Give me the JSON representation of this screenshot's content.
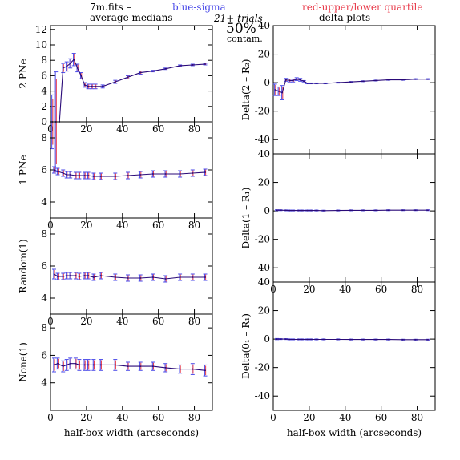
{
  "header": {
    "file_label": "7m.fits  –",
    "blue_label": "blue-sigma",
    "red_label": "red-upper/lower quartile",
    "left_title": "average medians",
    "trials": "21+ trials",
    "percent": "50%",
    "contam": "contam.",
    "right_title": "delta plots"
  },
  "colors": {
    "median": "#2a0a78",
    "sigma": "#4a4ae8",
    "quartile": "#e83a4a",
    "axis": "#000000"
  },
  "chart_data": [
    {
      "type": "line",
      "panel": "left-1",
      "xlabel": "",
      "ylabel": "2 PNe",
      "xlim": [
        0,
        90
      ],
      "ylim": [
        0,
        12.5
      ],
      "xticks": [
        0,
        20,
        40,
        60,
        80
      ],
      "yticks": [
        0,
        2,
        4,
        6,
        8,
        10,
        12
      ],
      "show_xticklabels": true,
      "x": [
        1,
        3,
        5,
        7,
        9,
        11,
        13,
        15,
        17,
        19,
        21,
        23,
        25,
        29,
        36,
        43,
        50,
        57,
        64,
        72,
        79,
        86
      ],
      "y": [
        0,
        0,
        0,
        7.0,
        7.2,
        7.6,
        8.1,
        7.0,
        6.0,
        4.8,
        4.6,
        4.6,
        4.6,
        4.6,
        5.2,
        5.8,
        6.4,
        6.6,
        6.9,
        7.3,
        7.4,
        7.5
      ],
      "err": [
        3.5,
        6.5,
        0,
        0.6,
        0.6,
        0.6,
        0.8,
        0.5,
        0.4,
        0.3,
        0.3,
        0.3,
        0.3,
        0.2,
        0.2,
        0.2,
        0.2,
        0.1,
        0.1,
        0.1,
        0.1,
        0.1
      ]
    },
    {
      "type": "line",
      "panel": "left-2",
      "xlabel": "",
      "ylabel": "1 PNe",
      "xlim": [
        0,
        90
      ],
      "ylim": [
        3,
        9
      ],
      "xticks": [
        0,
        20,
        40,
        60,
        80
      ],
      "yticks": [
        4,
        6,
        8
      ],
      "show_xticklabels": true,
      "x": [
        2,
        4,
        7,
        9,
        11,
        14,
        16,
        19,
        21,
        24,
        28,
        36,
        43,
        50,
        57,
        64,
        72,
        79,
        86
      ],
      "y": [
        6.0,
        5.9,
        5.8,
        5.7,
        5.7,
        5.65,
        5.65,
        5.65,
        5.65,
        5.6,
        5.6,
        5.6,
        5.65,
        5.7,
        5.75,
        5.75,
        5.75,
        5.8,
        5.85
      ],
      "err": [
        0.2,
        0.2,
        0.2,
        0.2,
        0.2,
        0.2,
        0.2,
        0.2,
        0.2,
        0.2,
        0.2,
        0.2,
        0.2,
        0.2,
        0.2,
        0.2,
        0.2,
        0.2,
        0.2
      ]
    },
    {
      "type": "line",
      "panel": "left-3",
      "xlabel": "",
      "ylabel": "Random(1)",
      "xlim": [
        0,
        90
      ],
      "ylim": [
        3,
        9
      ],
      "xticks": [
        0,
        20,
        40,
        60,
        80
      ],
      "yticks": [
        4,
        6,
        8
      ],
      "show_xticklabels": true,
      "x": [
        2,
        4,
        7,
        9,
        11,
        14,
        16,
        19,
        21,
        24,
        28,
        36,
        43,
        50,
        57,
        64,
        72,
        79,
        86
      ],
      "y": [
        5.5,
        5.35,
        5.35,
        5.4,
        5.4,
        5.4,
        5.35,
        5.4,
        5.4,
        5.3,
        5.4,
        5.3,
        5.25,
        5.25,
        5.3,
        5.2,
        5.3,
        5.3,
        5.3
      ],
      "err": [
        0.3,
        0.2,
        0.2,
        0.2,
        0.2,
        0.2,
        0.2,
        0.2,
        0.2,
        0.2,
        0.2,
        0.2,
        0.2,
        0.2,
        0.2,
        0.2,
        0.2,
        0.2,
        0.2
      ]
    },
    {
      "type": "line",
      "panel": "left-4",
      "xlabel": "half-box width (arcseconds)",
      "ylabel": "None(1)",
      "xlim": [
        0,
        90
      ],
      "ylim": [
        2,
        9
      ],
      "xticks": [
        0,
        20,
        40,
        60,
        80
      ],
      "yticks": [
        4,
        6,
        8
      ],
      "show_xticklabels": true,
      "x": [
        2,
        4,
        7,
        9,
        11,
        14,
        16,
        19,
        21,
        24,
        28,
        36,
        43,
        50,
        57,
        64,
        72,
        79,
        86
      ],
      "y": [
        5.3,
        5.4,
        5.2,
        5.3,
        5.4,
        5.4,
        5.3,
        5.3,
        5.3,
        5.3,
        5.3,
        5.3,
        5.2,
        5.2,
        5.2,
        5.1,
        5.0,
        5.0,
        4.9
      ],
      "err": [
        0.5,
        0.4,
        0.4,
        0.4,
        0.4,
        0.4,
        0.4,
        0.4,
        0.4,
        0.4,
        0.4,
        0.4,
        0.3,
        0.3,
        0.3,
        0.3,
        0.3,
        0.4,
        0.4
      ]
    },
    {
      "type": "line",
      "panel": "right-1",
      "xlabel": "",
      "ylabel": "Delta(2 – R₂)",
      "xlim": [
        0,
        90
      ],
      "ylim": [
        -50,
        40
      ],
      "xticks": [
        0,
        20,
        40,
        60,
        80
      ],
      "yticks": [
        -40,
        -20,
        0,
        20,
        40
      ],
      "show_xticklabels": false,
      "x": [
        1,
        3,
        5,
        7,
        9,
        11,
        13,
        15,
        17,
        19,
        21,
        24,
        29,
        36,
        43,
        50,
        57,
        64,
        72,
        79,
        86
      ],
      "y": [
        -5,
        -6,
        -7,
        2,
        1.5,
        1.5,
        2.5,
        2,
        1,
        -0.5,
        -0.5,
        -0.5,
        -0.5,
        0,
        0.5,
        1,
        1.5,
        2,
        2,
        2.5,
        2.5
      ],
      "err": [
        4,
        3,
        5,
        1,
        1,
        1,
        1,
        1,
        0.5,
        0.3,
        0.3,
        0.3,
        0.3,
        0.3,
        0.3,
        0.3,
        0.3,
        0.3,
        0.3,
        0.3,
        0.3
      ]
    },
    {
      "type": "line",
      "panel": "right-2",
      "xlabel": "",
      "ylabel": "Delta(1 – R₁)",
      "xlim": [
        0,
        90
      ],
      "ylim": [
        -50,
        40
      ],
      "xticks": [
        0,
        20,
        40,
        60,
        80
      ],
      "yticks": [
        -40,
        -20,
        0,
        20,
        40
      ],
      "show_xticklabels": true,
      "x": [
        2,
        4,
        7,
        9,
        11,
        14,
        16,
        19,
        21,
        24,
        28,
        36,
        43,
        50,
        57,
        64,
        72,
        79,
        86
      ],
      "y": [
        0.5,
        0.5,
        0.4,
        0.3,
        0.3,
        0.3,
        0.3,
        0.3,
        0.3,
        0.3,
        0.2,
        0.3,
        0.4,
        0.4,
        0.4,
        0.5,
        0.5,
        0.5,
        0.5
      ],
      "err": [
        0.3,
        0.3,
        0.3,
        0.3,
        0.3,
        0.3,
        0.3,
        0.3,
        0.3,
        0.3,
        0.3,
        0.3,
        0.3,
        0.3,
        0.3,
        0.3,
        0.3,
        0.3,
        0.3
      ]
    },
    {
      "type": "line",
      "panel": "right-3",
      "xlabel": "half-box width (arcseconds)",
      "ylabel": "Delta(0₁ – R₁)",
      "xlim": [
        0,
        90
      ],
      "ylim": [
        -50,
        40
      ],
      "xticks": [
        0,
        20,
        40,
        60,
        80
      ],
      "yticks": [
        -40,
        -20,
        0,
        20,
        40
      ],
      "show_xticklabels": true,
      "x": [
        2,
        4,
        7,
        9,
        11,
        14,
        16,
        19,
        21,
        24,
        28,
        36,
        43,
        50,
        57,
        64,
        72,
        79,
        86
      ],
      "y": [
        0,
        0,
        0,
        -0.2,
        -0.2,
        -0.2,
        -0.2,
        -0.2,
        -0.2,
        -0.2,
        -0.2,
        -0.2,
        -0.3,
        -0.3,
        -0.3,
        -0.3,
        -0.4,
        -0.4,
        -0.4
      ],
      "err": [
        0.4,
        0.3,
        0.3,
        0.3,
        0.3,
        0.3,
        0.3,
        0.3,
        0.3,
        0.3,
        0.3,
        0.3,
        0.3,
        0.3,
        0.3,
        0.3,
        0.3,
        0.3,
        0.3
      ]
    }
  ]
}
